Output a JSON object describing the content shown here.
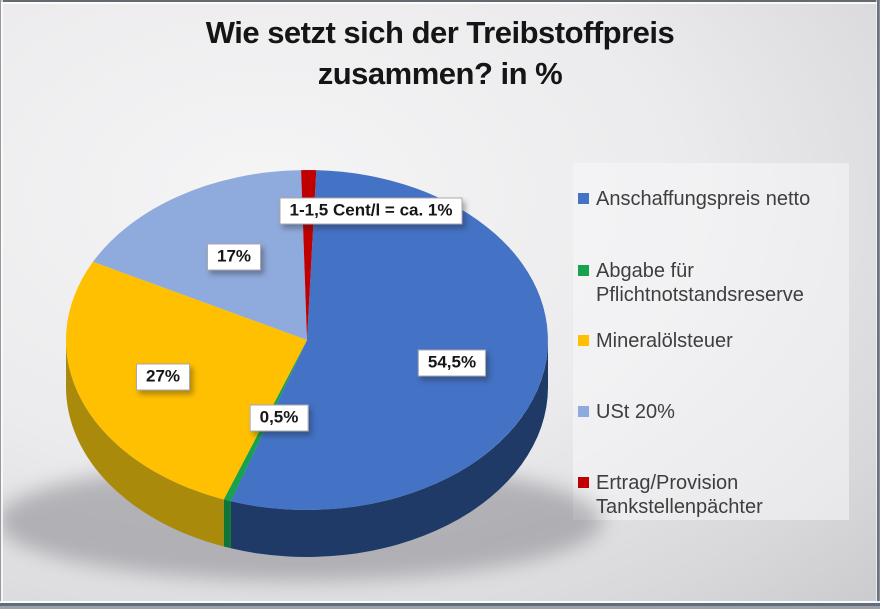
{
  "title": "Wie setzt sich der Treibstoffpreis zusammen? in %",
  "chart_data": {
    "type": "pie",
    "style": "3d",
    "title": "Wie setzt sich der Treibstoffpreis zusammen? in %",
    "unit": "%",
    "legend_position": "right",
    "total": 100,
    "start_angle_deg": 2.2,
    "slices": [
      {
        "name": "Anschaffungspreis netto",
        "value": 54.5,
        "label": "54,5%",
        "color": "#4472c4",
        "side_color": "#1f3a66"
      },
      {
        "name": "Abgabe für Pflichtnotstandsreserve",
        "value": 0.5,
        "label": "0,5%",
        "color": "#18a24e",
        "side_color": "#0f7436"
      },
      {
        "name": "Mineralölsteuer",
        "value": 27,
        "label": "27%",
        "color": "#fec000",
        "side_color": "#aa8a0a"
      },
      {
        "name": "USt 20%",
        "value": 17,
        "label": "17%",
        "color": "#8faadc",
        "side_color": "#5f79a8"
      },
      {
        "name": "Ertrag/Provision Tankstellenpächter",
        "value": 1,
        "label": "1-1,5 Cent/l = ca. 1%",
        "color": "#c00000",
        "side_color": "#7c0b0b"
      }
    ]
  }
}
